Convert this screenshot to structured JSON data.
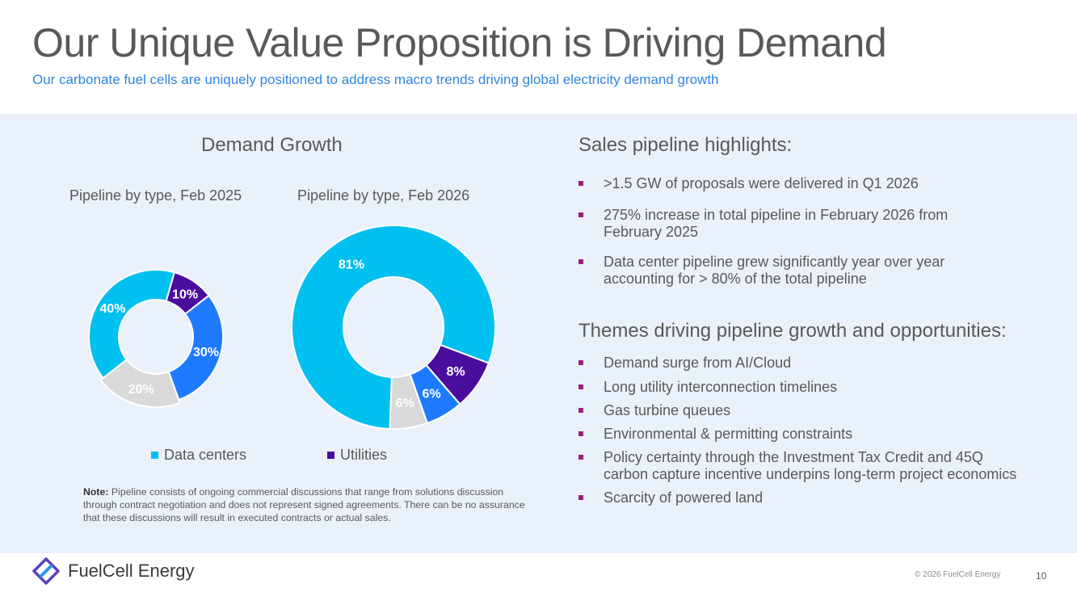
{
  "header": {
    "title": "Our Unique Value Proposition is Driving Demand",
    "subtitle": "Our carbonate fuel cells are uniquely positioned to address macro trends driving global electricity demand growth"
  },
  "left": {
    "heading": "Demand Growth",
    "legend": [
      {
        "label": "Data centers",
        "color": "#00c0f0"
      },
      {
        "label": "Utilities",
        "color": "#4b0d9e"
      }
    ],
    "note_label": "Note:",
    "note_text": "Pipeline consists of ongoing commercial discussions that range from solutions discussion through contract negotiation and does not represent signed agreements. There can be no assurance that these discussions will result in executed contracts or actual sales."
  },
  "chart_data": [
    {
      "type": "pie",
      "title": "Pipeline by type, Feb 2025",
      "categories": [
        "Data centers",
        "Utilities",
        "Blue segment",
        "Gray segment"
      ],
      "values": [
        40,
        10,
        30,
        20
      ],
      "labels": [
        "40%",
        "10%",
        "30%",
        "20%"
      ],
      "colors": [
        "#00c0f0",
        "#4b0d9e",
        "#1e7bff",
        "#d9d9d9"
      ],
      "label_colors": [
        "#ffffff",
        "#ffffff",
        "#ffffff",
        "#ffffff"
      ]
    },
    {
      "type": "pie",
      "title": "Pipeline by type, Feb 2026",
      "categories": [
        "Data centers",
        "Utilities",
        "Blue segment",
        "Gray segment"
      ],
      "values": [
        81,
        8,
        6,
        6
      ],
      "labels": [
        "81%",
        "8%",
        "6%",
        "6%"
      ],
      "colors": [
        "#00c0f0",
        "#4b0d9e",
        "#1e7bff",
        "#d9d9d9"
      ],
      "label_colors": [
        "#ffffff",
        "#ffffff",
        "#ffffff",
        "#ffffff"
      ]
    }
  ],
  "right": {
    "sales_heading": "Sales pipeline highlights:",
    "sales_items": [
      ">1.5 GW of proposals were delivered in Q1 2026",
      "275% increase in total pipeline in February 2026 from February 2025",
      "Data center pipeline grew significantly year over year accounting for > 80% of the total pipeline"
    ],
    "themes_heading": "Themes driving pipeline growth and opportunities:",
    "themes_items": [
      "Demand surge from AI/Cloud",
      "Long utility interconnection timelines",
      "Gas turbine queues",
      "Environmental & permitting constraints",
      "Policy certainty through the Investment Tax Credit and 45Q carbon capture incentive underpins long-term project economics",
      "Scarcity of powered land"
    ]
  },
  "footer": {
    "brand": "FuelCell Energy",
    "copyright": "© 2026 FuelCell Energy",
    "page_number": "10"
  }
}
